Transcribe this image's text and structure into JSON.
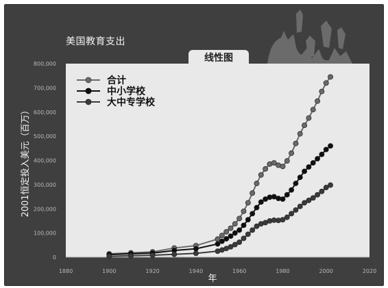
{
  "chart_data": {
    "type": "line",
    "title": "美国教育支出",
    "tab_label": "线性图",
    "xlabel": "年",
    "ylabel": "2001恒定投入美元（百万）",
    "xlim": [
      1880,
      2020
    ],
    "ylim": [
      0,
      800000
    ],
    "x_ticks": [
      "1880",
      "1900",
      "1920",
      "1940",
      "1960",
      "1980",
      "2000",
      "2020"
    ],
    "y_ticks": [
      "0",
      "100,000",
      "200,000",
      "300,000",
      "400,000",
      "500,000",
      "600,000",
      "700,000",
      "800,000"
    ],
    "legend_position": "top-left",
    "grid": false,
    "x": [
      1900,
      1910,
      1920,
      1930,
      1940,
      1950,
      1952,
      1954,
      1956,
      1958,
      1960,
      1962,
      1964,
      1966,
      1968,
      1970,
      1972,
      1974,
      1976,
      1978,
      1980,
      1982,
      1984,
      1986,
      1988,
      1990,
      1992,
      1994,
      1996,
      1998,
      2000,
      2002
    ],
    "series": [
      {
        "name": "合计",
        "color": "#6a6a6a",
        "values": [
          14000,
          18000,
          22000,
          38000,
          48000,
          75000,
          90000,
          105000,
          120000,
          138000,
          160000,
          190000,
          225000,
          265000,
          305000,
          340000,
          365000,
          385000,
          390000,
          380000,
          375000,
          398000,
          430000,
          470000,
          510000,
          545000,
          575000,
          610000,
          645000,
          685000,
          720000,
          745000
        ]
      },
      {
        "name": "中小学校",
        "color": "#0f0f0f",
        "values": [
          11000,
          14000,
          17000,
          28000,
          35000,
          55000,
          66000,
          76000,
          87000,
          100000,
          112000,
          132000,
          155000,
          180000,
          205000,
          228000,
          240000,
          248000,
          250000,
          243000,
          240000,
          258000,
          278000,
          305000,
          330000,
          355000,
          373000,
          390000,
          407000,
          425000,
          445000,
          460000
        ]
      },
      {
        "name": "大中专学校",
        "color": "#3a3a3a",
        "values": [
          4000,
          6000,
          8000,
          12000,
          16000,
          25000,
          30000,
          36000,
          43000,
          52000,
          62000,
          78000,
          95000,
          112000,
          128000,
          138000,
          143000,
          150000,
          153000,
          152000,
          155000,
          165000,
          180000,
          195000,
          210000,
          225000,
          235000,
          245000,
          258000,
          272000,
          288000,
          298000
        ]
      }
    ]
  }
}
